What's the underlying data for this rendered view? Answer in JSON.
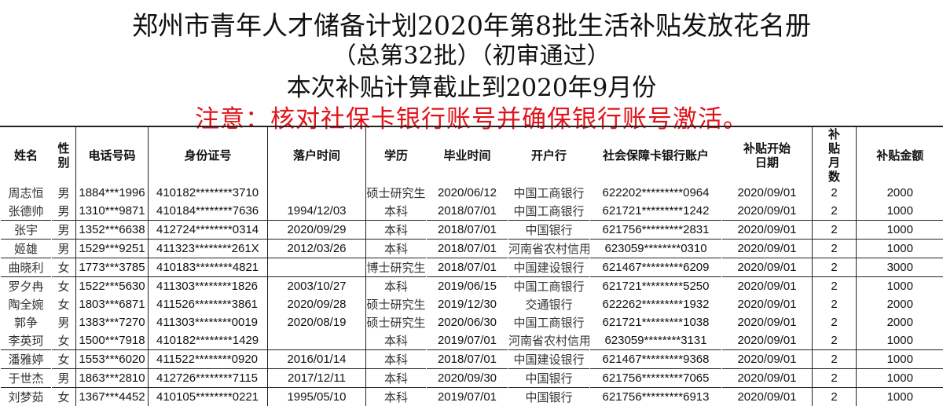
{
  "title": {
    "line1": "郑州市青年人才储备计划2020年第8批生活补贴发放花名册",
    "line2": "（总第32批）（初审通过）",
    "line3": "本次补贴计算截止到2020年9月份",
    "notice": "注意：核对社保卡银行账号并确保银行账号激活。",
    "notice_color": "#e0141b"
  },
  "table": {
    "headers": [
      "姓名",
      "性别",
      "电话号码",
      "身份证号",
      "落户时间",
      "学历",
      "毕业时间",
      "开户行",
      "社会保障卡银行账户",
      "补贴开始日期",
      "补贴月数",
      "补贴金额"
    ],
    "rows": [
      [
        "周志恒",
        "男",
        "1884***1996",
        "410182********3710",
        "",
        "硕士研究生",
        "2020/06/12",
        "中国工商银行",
        "622202*********0964",
        "2020/09/01",
        "2",
        "2000"
      ],
      [
        "张德帅",
        "男",
        "1310***9871",
        "410184********7636",
        "1994/12/03",
        "本科",
        "2018/07/01",
        "中国工商银行",
        "621721*********1242",
        "2020/09/01",
        "2",
        "1000"
      ],
      [
        "张宇",
        "男",
        "1352***6638",
        "412724********0314",
        "2020/09/29",
        "本科",
        "2018/07/01",
        "中国银行",
        "621756*********2831",
        "2020/09/01",
        "2",
        "1000"
      ],
      [
        "姬雄",
        "男",
        "1529***9251",
        "411323********261X",
        "2012/03/26",
        "本科",
        "2018/07/01",
        "河南省农村信用社",
        "623059********0310",
        "2020/09/01",
        "2",
        "1000"
      ],
      [
        "曲晓利",
        "女",
        "1773***3785",
        "410183********4821",
        "",
        "博士研究生",
        "2018/07/01",
        "中国建设银行",
        "621467*********6209",
        "2020/09/01",
        "2",
        "3000"
      ],
      [
        "罗夕冉",
        "女",
        "1522***5630",
        "411303********1826",
        "2003/10/27",
        "本科",
        "2019/06/15",
        "中国工商银行",
        "621721*********5250",
        "2020/09/01",
        "2",
        "1000"
      ],
      [
        "陶全婉",
        "女",
        "1803***6871",
        "411526********3861",
        "2020/09/28",
        "硕士研究生",
        "2019/12/30",
        "交通银行",
        "622262*********1932",
        "2020/09/01",
        "2",
        "2000"
      ],
      [
        "郭争",
        "男",
        "1383***7270",
        "411303********0019",
        "2020/08/19",
        "硕士研究生",
        "2020/06/30",
        "中国工商银行",
        "621721*********1038",
        "2020/09/01",
        "2",
        "2000"
      ],
      [
        "李英珂",
        "女",
        "1500***7918",
        "410182********1429",
        "",
        "本科",
        "2019/07/01",
        "河南省农村信用社",
        "623059********3131",
        "2020/09/01",
        "2",
        "1000"
      ],
      [
        "潘雅婷",
        "女",
        "1553***6020",
        "411522********0920",
        "2016/01/14",
        "本科",
        "2018/07/01",
        "中国建设银行",
        "621467*********9368",
        "2020/09/01",
        "2",
        "1000"
      ],
      [
        "于世杰",
        "男",
        "1863***2810",
        "412726********7115",
        "2017/12/11",
        "本科",
        "2020/09/30",
        "中国银行",
        "621756*********7065",
        "2020/09/01",
        "2",
        "1000"
      ],
      [
        "刘梦茹",
        "女",
        "1367***4452",
        "410105********0221",
        "1995/05/10",
        "本科",
        "2019/07/01",
        "中国银行",
        "621756*********6913",
        "2020/09/01",
        "2",
        "1000"
      ]
    ]
  }
}
